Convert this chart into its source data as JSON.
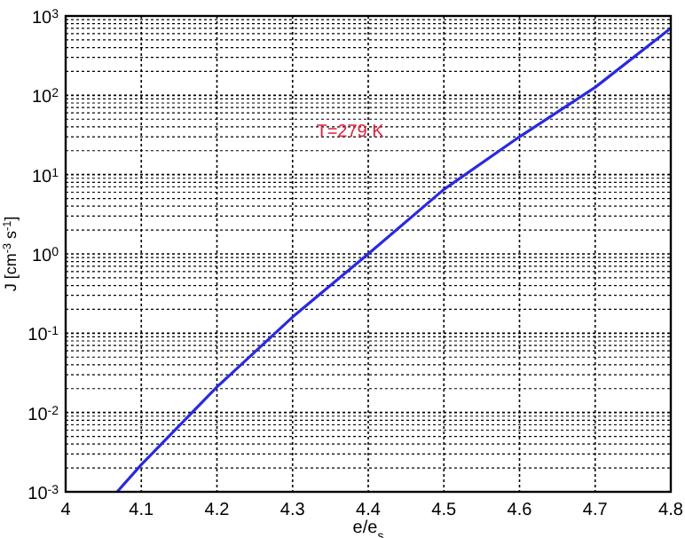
{
  "chart_data": {
    "type": "line",
    "xlabel": "e/e$_{s}$",
    "ylabel": "J [cm$^{-3}$ s$^{-1}$]",
    "annotations": [
      "T=279 K"
    ],
    "series": [
      {
        "color": "#2a2ae0",
        "x": [
          4.068,
          4.1,
          4.2,
          4.3,
          4.4,
          4.5,
          4.6,
          4.7,
          4.8
        ],
        "values": [
          0.001,
          0.0022,
          0.021,
          0.16,
          1.0,
          6.5,
          30,
          126,
          700
        ]
      }
    ],
    "log": "y",
    "grid": true,
    "line_style": "solid",
    "marker": "none",
    "xlim": [
      4,
      4.8
    ],
    "xticks": [
      4,
      4.1,
      4.2,
      4.3,
      4.4,
      4.5,
      4.6,
      4.7,
      4.8
    ],
    "ylim": [
      0.001,
      1000
    ],
    "yticks": [
      {
        "value": 0.001,
        "label": "10$^{-3}$"
      },
      {
        "value": 0.01,
        "label": "10$^{-2}$"
      },
      {
        "value": 0.1,
        "label": "10$^{-1}$"
      },
      {
        "value": 1,
        "label": "10$^{0}$"
      },
      {
        "value": 10,
        "label": "10$^{1}$"
      },
      {
        "value": 100,
        "label": "10$^{2}$"
      },
      {
        "value": 1000,
        "label": "10$^{3}$"
      }
    ]
  }
}
